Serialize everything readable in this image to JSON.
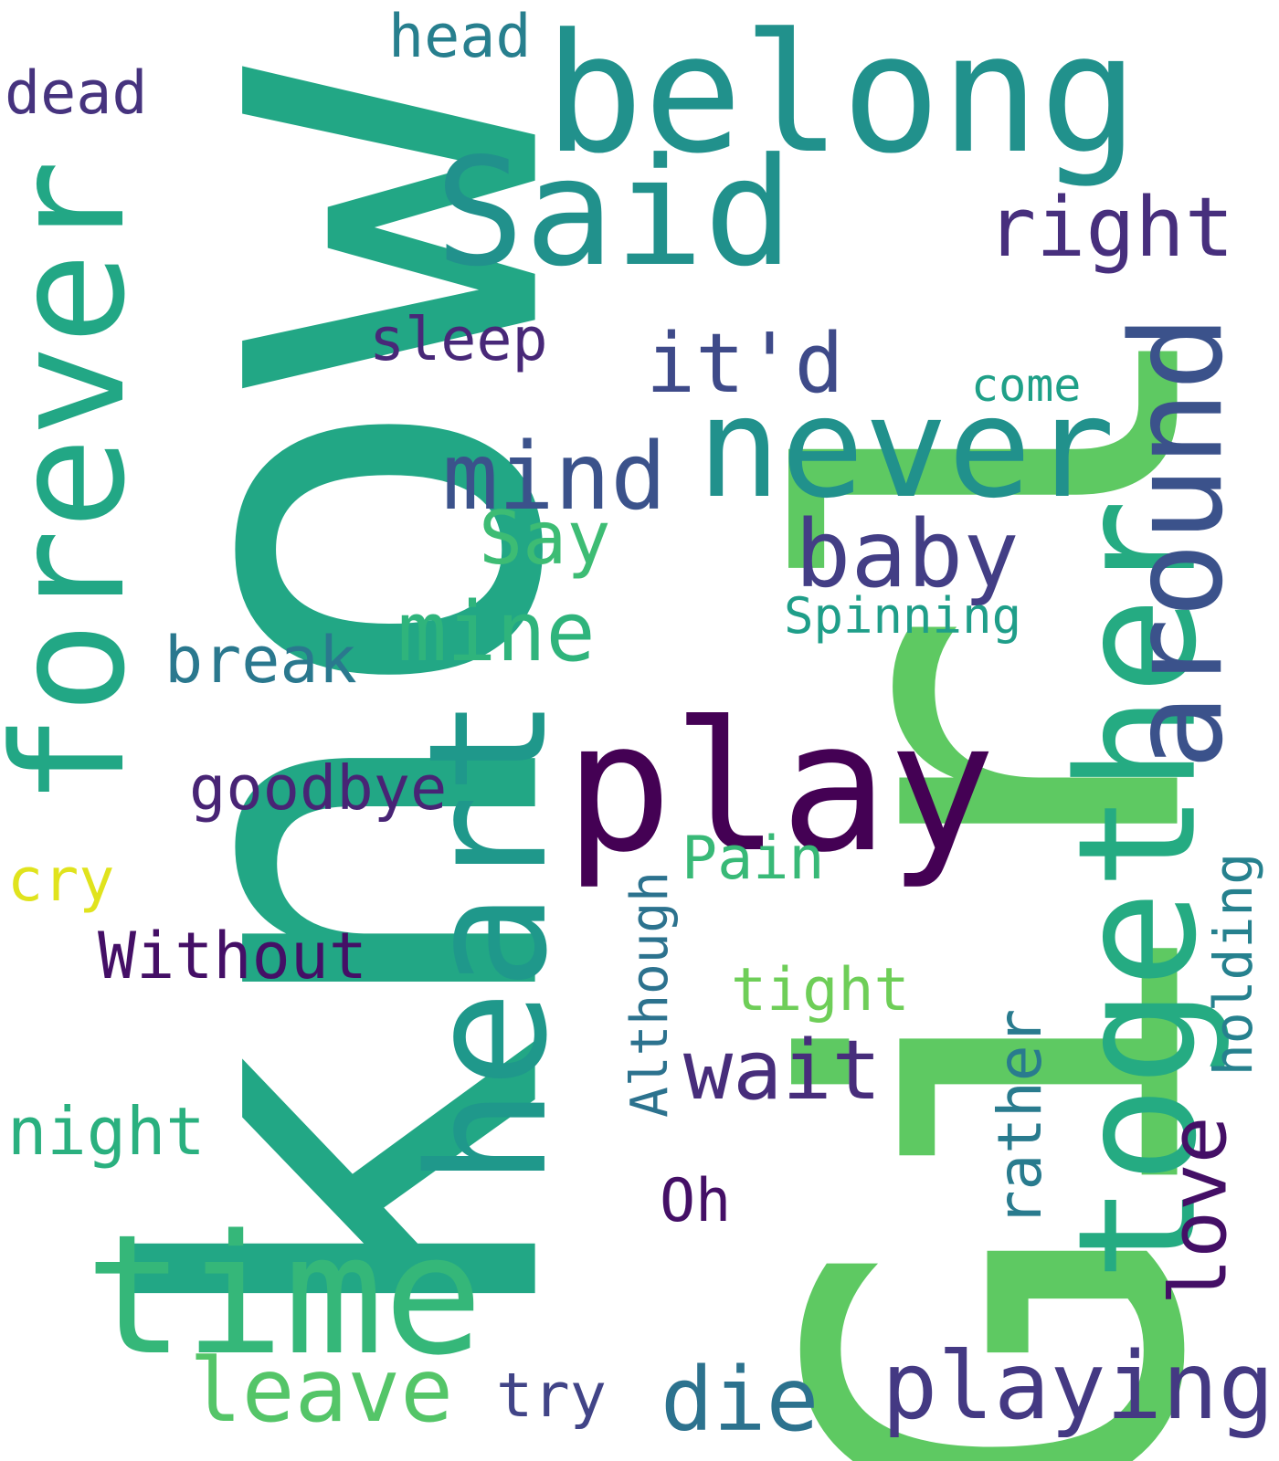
{
  "words": [
    {
      "text": "Girl",
      "color": "#5ec962",
      "orientation": "vertical"
    },
    {
      "text": "know",
      "color": "#22a785",
      "orientation": "vertical"
    },
    {
      "text": "belong",
      "color": "#21918c",
      "orientation": "horizontal"
    },
    {
      "text": "forever",
      "color": "#22a785",
      "orientation": "vertical"
    },
    {
      "text": "Said",
      "color": "#21918c",
      "orientation": "horizontal"
    },
    {
      "text": "heart",
      "color": "#1f988b",
      "orientation": "vertical"
    },
    {
      "text": "together",
      "color": "#25ab82",
      "orientation": "vertical"
    },
    {
      "text": "around",
      "color": "#3b528b",
      "orientation": "vertical"
    },
    {
      "text": "play",
      "color": "#440154",
      "orientation": "horizontal"
    },
    {
      "text": "never",
      "color": "#21918c",
      "orientation": "horizontal"
    },
    {
      "text": "time",
      "color": "#35b779",
      "orientation": "horizontal"
    },
    {
      "text": "right",
      "color": "#472f7d",
      "orientation": "horizontal"
    },
    {
      "text": "it'd",
      "color": "#3e4a89",
      "orientation": "horizontal"
    },
    {
      "text": "mind",
      "color": "#3b528b",
      "orientation": "horizontal"
    },
    {
      "text": "baby",
      "color": "#433e85",
      "orientation": "horizontal"
    },
    {
      "text": "playing",
      "color": "#443983",
      "orientation": "horizontal"
    },
    {
      "text": "mine",
      "color": "#2fb47c",
      "orientation": "horizontal"
    },
    {
      "text": "head",
      "color": "#277f8e",
      "orientation": "horizontal"
    },
    {
      "text": "dead",
      "color": "#46337e",
      "orientation": "horizontal"
    },
    {
      "text": "sleep",
      "color": "#482878",
      "orientation": "horizontal"
    },
    {
      "text": "come",
      "color": "#1fa088",
      "orientation": "horizontal"
    },
    {
      "text": "Say",
      "color": "#3dbc74",
      "orientation": "horizontal"
    },
    {
      "text": "Spinning",
      "color": "#1f9e89",
      "orientation": "horizontal"
    },
    {
      "text": "break",
      "color": "#2a788e",
      "orientation": "horizontal"
    },
    {
      "text": "goodbye",
      "color": "#482475",
      "orientation": "horizontal"
    },
    {
      "text": "cry",
      "color": "#e0e31d",
      "orientation": "horizontal"
    },
    {
      "text": "Pain",
      "color": "#38b977",
      "orientation": "horizontal"
    },
    {
      "text": "Without",
      "color": "#440f66",
      "orientation": "horizontal"
    },
    {
      "text": "tight",
      "color": "#6ece58",
      "orientation": "horizontal"
    },
    {
      "text": "Although",
      "color": "#2c728e",
      "orientation": "vertical"
    },
    {
      "text": "holding",
      "color": "#26818e",
      "orientation": "vertical"
    },
    {
      "text": "rather",
      "color": "#297b8e",
      "orientation": "vertical"
    },
    {
      "text": "love",
      "color": "#440f66",
      "orientation": "vertical"
    },
    {
      "text": "wait",
      "color": "#472d7b",
      "orientation": "horizontal"
    },
    {
      "text": "night",
      "color": "#2ab07f",
      "orientation": "horizontal"
    },
    {
      "text": "Oh",
      "color": "#440f66",
      "orientation": "horizontal"
    },
    {
      "text": "leave",
      "color": "#54c568",
      "orientation": "horizontal"
    },
    {
      "text": "try",
      "color": "#414487",
      "orientation": "horizontal"
    },
    {
      "text": "die",
      "color": "#2c728e",
      "orientation": "horizontal"
    }
  ]
}
